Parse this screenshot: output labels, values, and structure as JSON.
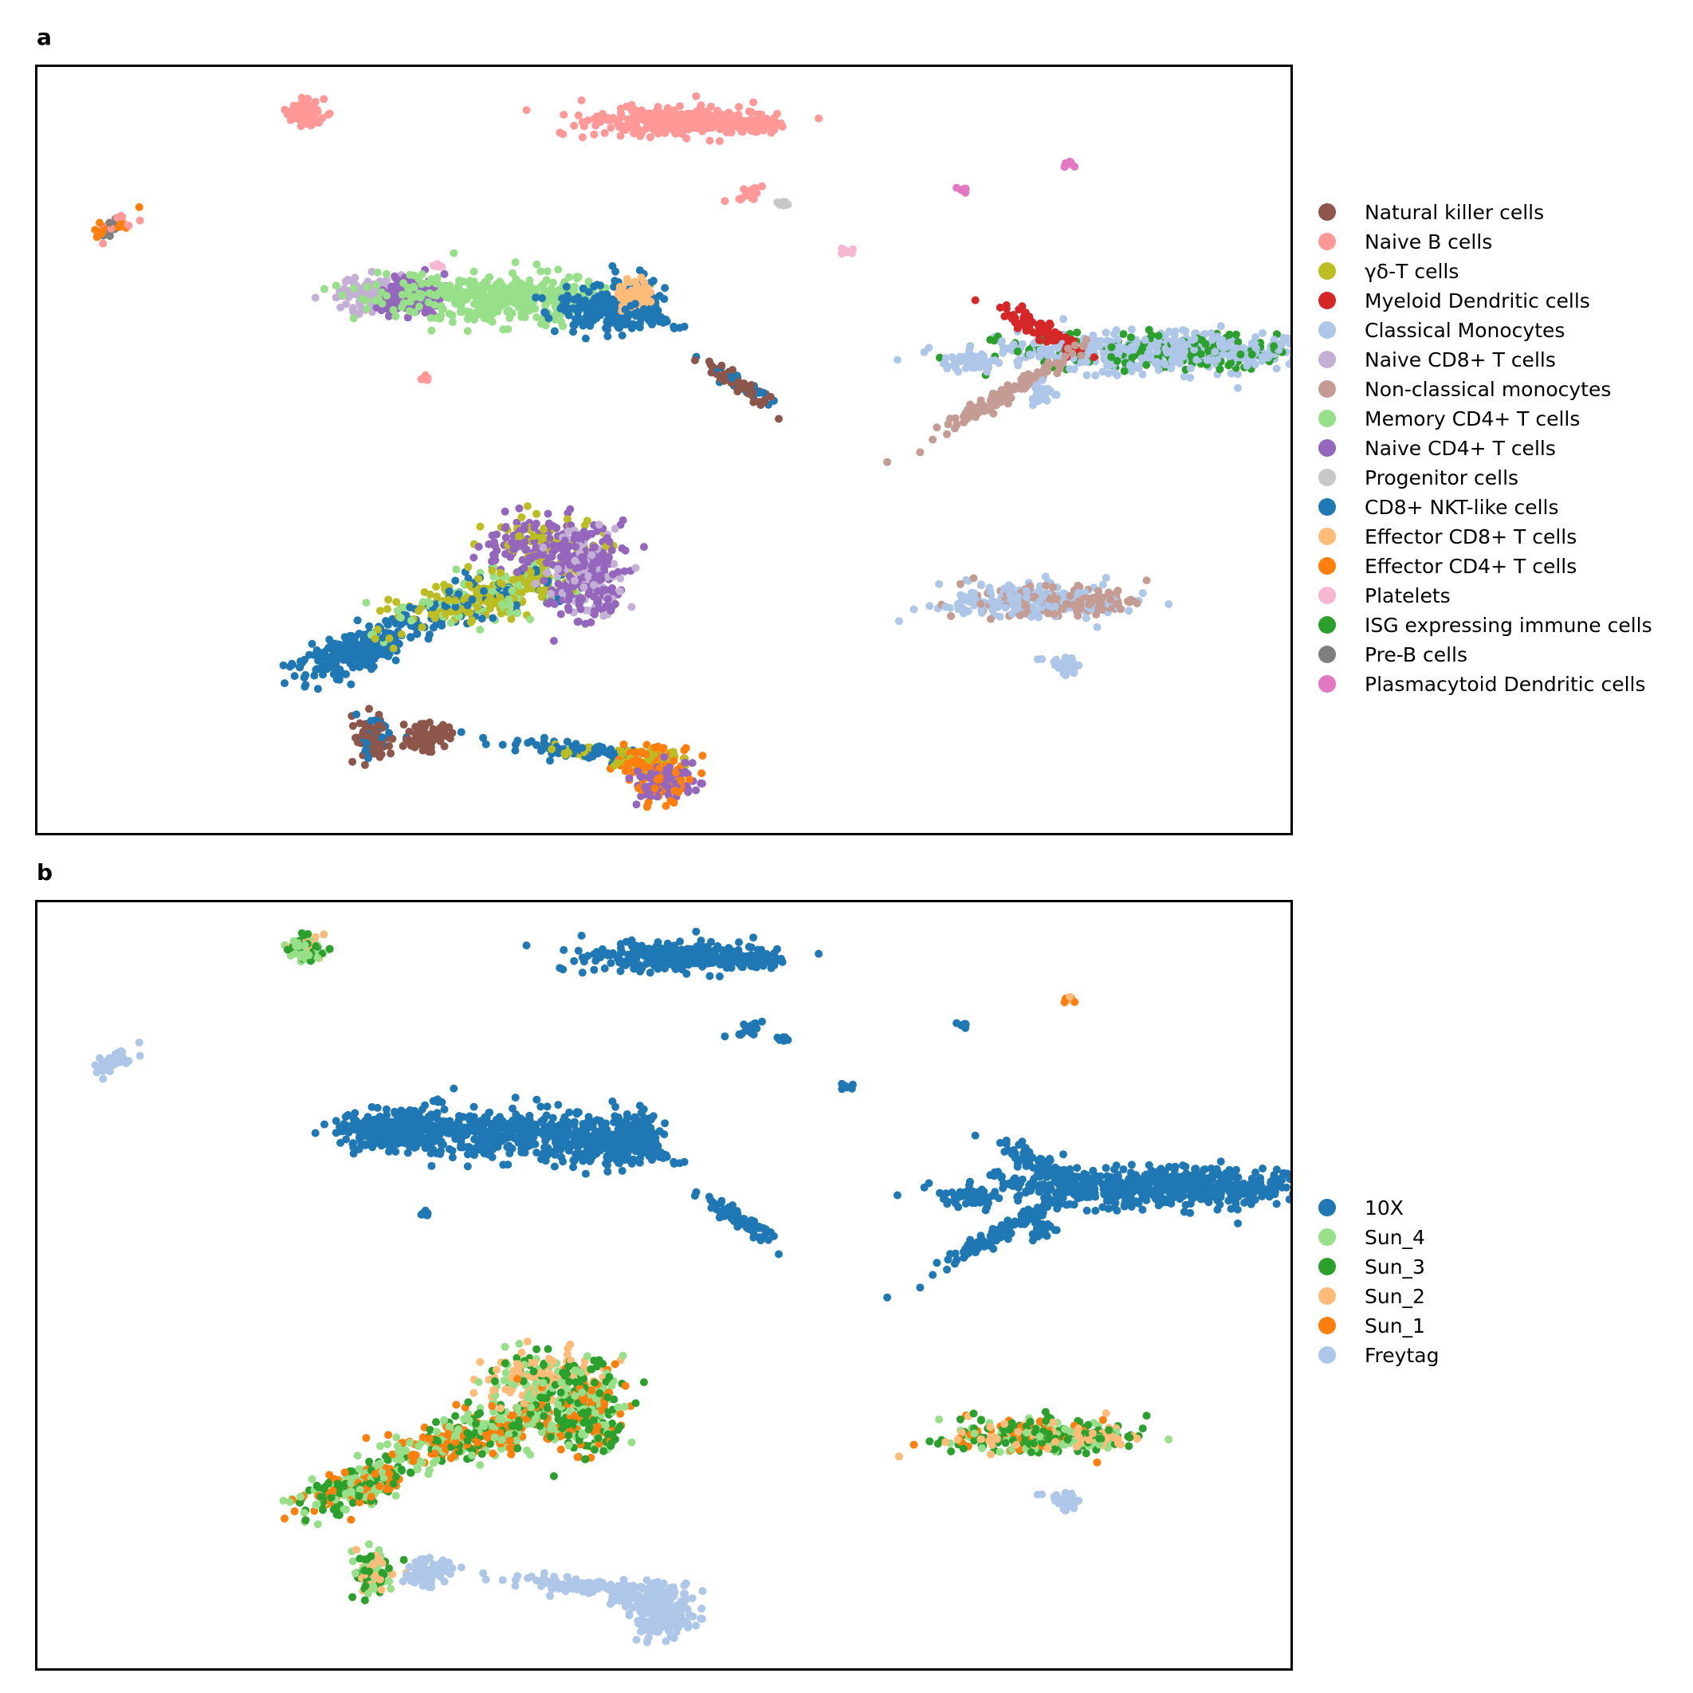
{
  "chart_data": [
    {
      "type": "scatter",
      "panel": "a",
      "xlabel": "",
      "ylabel": "",
      "grid": false,
      "legend_position": "right",
      "series": [
        {
          "name": "Natural killer  cells",
          "color": "#8c564b"
        },
        {
          "name": "Naive B cells",
          "color": "#ff9896"
        },
        {
          "name": "γδ-T cells",
          "color": "#bcbd22"
        },
        {
          "name": "Myeloid Dendritic cells",
          "color": "#d62728"
        },
        {
          "name": "Classical Monocytes",
          "color": "#aec7e8"
        },
        {
          "name": "Naive CD8+ T cells",
          "color": "#c5b0d5"
        },
        {
          "name": "Non-classical monocytes",
          "color": "#c49c94"
        },
        {
          "name": "Memory CD4+ T cells",
          "color": "#98df8a"
        },
        {
          "name": "Naive CD4+ T cells",
          "color": "#9467bd"
        },
        {
          "name": "Progenitor cells",
          "color": "#c7c7c7"
        },
        {
          "name": "CD8+ NKT-like cells",
          "color": "#1f77b4"
        },
        {
          "name": "Effector CD8+ T cells",
          "color": "#ffbb78"
        },
        {
          "name": "Effector CD4+ T cells",
          "color": "#ff7f0e"
        },
        {
          "name": "Platelets",
          "color": "#f7b6d2"
        },
        {
          "name": "ISG expressing immune cells",
          "color": "#2ca02c"
        },
        {
          "name": "Pre-B cells",
          "color": "#7f7f7f"
        },
        {
          "name": "Plasmacytoid Dendritic cells",
          "color": "#e377c2"
        }
      ]
    },
    {
      "type": "scatter",
      "panel": "b",
      "xlabel": "",
      "ylabel": "",
      "grid": false,
      "legend_position": "right",
      "series": [
        {
          "name": "10X",
          "color": "#1f77b4"
        },
        {
          "name": "Sun_4",
          "color": "#98df8a"
        },
        {
          "name": "Sun_3",
          "color": "#2ca02c"
        },
        {
          "name": "Sun_2",
          "color": "#ffbb78"
        },
        {
          "name": "Sun_1",
          "color": "#ff7f0e"
        },
        {
          "name": "Freytag",
          "color": "#aec7e8"
        }
      ]
    }
  ],
  "panels": {
    "a": {
      "label": "a"
    },
    "b": {
      "label": "b"
    }
  }
}
